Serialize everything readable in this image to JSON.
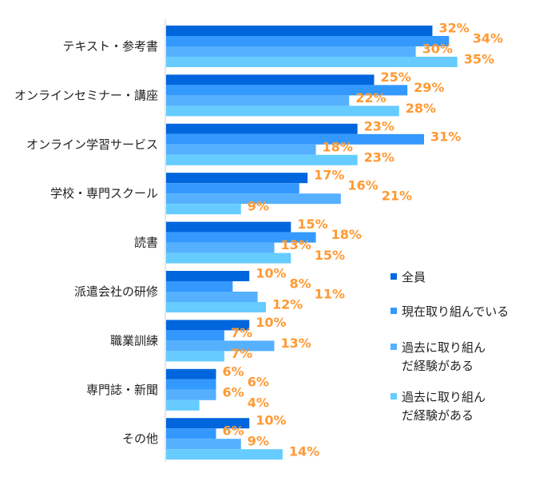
{
  "chart_data": {
    "type": "bar",
    "orientation": "horizontal",
    "categories": [
      "テキスト・参考書",
      "オンラインセミナー・講座",
      "オンライン学習サービス",
      "学校・専門スクール",
      "読書",
      "派遣会社の研修",
      "職業訓練",
      "専門誌・新聞",
      "その他"
    ],
    "series": [
      {
        "name": "全員",
        "color": "#0066dd",
        "values": [
          32,
          25,
          23,
          17,
          15,
          10,
          10,
          6,
          10
        ]
      },
      {
        "name": "現在取り組んでいる",
        "color": "#3399ff",
        "values": [
          34,
          29,
          31,
          16,
          18,
          8,
          7,
          6,
          6
        ]
      },
      {
        "name": "過去に取り組んだ経験がある",
        "color": "#55b0ff",
        "values": [
          30,
          22,
          18,
          21,
          13,
          11,
          13,
          6,
          9
        ]
      },
      {
        "name": "過去に取り組んだ経験がある",
        "color": "#66ccff",
        "values": [
          35,
          28,
          23,
          9,
          15,
          12,
          7,
          4,
          14
        ]
      }
    ],
    "value_suffix": "%",
    "legend_position": "right",
    "xlim": [
      0,
      35
    ],
    "label_color": "#ff9933"
  }
}
